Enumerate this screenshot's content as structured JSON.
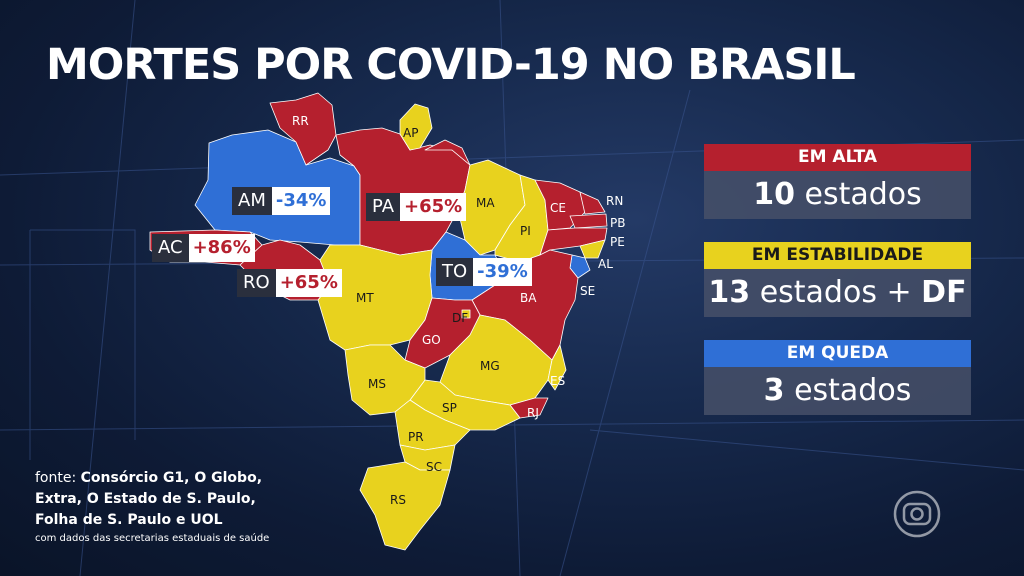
{
  "title": "MORTES POR COVID-19 NO BRASIL",
  "colors": {
    "alta": "#b5202e",
    "estabilidade": "#e8d21e",
    "queda": "#2f6fd6"
  },
  "map_labels": {
    "RR": "RR",
    "AP": "AP",
    "MA": "MA",
    "PI": "PI",
    "CE": "CE",
    "RN": "RN",
    "PB": "PB",
    "PE": "PE",
    "AL": "AL",
    "SE": "SE",
    "BA": "BA",
    "MT": "MT",
    "DF": "DF",
    "GO": "GO",
    "MG": "MG",
    "ES": "ES",
    "RJ": "RJ",
    "SP": "SP",
    "MS": "MS",
    "PR": "PR",
    "SC": "SC",
    "RS": "RS"
  },
  "callouts": [
    {
      "code": "AM",
      "value": "-34%",
      "trend": "down"
    },
    {
      "code": "PA",
      "value": "+65%",
      "trend": "up"
    },
    {
      "code": "AC",
      "value": "+86%",
      "trend": "up"
    },
    {
      "code": "RO",
      "value": "+65%",
      "trend": "up"
    },
    {
      "code": "TO",
      "value": "-39%",
      "trend": "down"
    }
  ],
  "legend": {
    "alta": {
      "header": "EM ALTA",
      "count": "10",
      "unit": " estados"
    },
    "estab": {
      "header": "EM ESTABILIDADE",
      "count": "13",
      "unit": " estados + ",
      "extra": "DF"
    },
    "queda": {
      "header": "EM QUEDA",
      "count": "3",
      "unit": " estados"
    }
  },
  "source": {
    "lead": "fonte: ",
    "line1": "Consórcio G1, O Globo,",
    "line2": "Extra, O Estado de S. Paulo,",
    "line3": "Folha de S. Paulo e UOL",
    "line4": "com dados das secretarias estaduais de saúde"
  },
  "logo_icon": "globo-logo-icon"
}
